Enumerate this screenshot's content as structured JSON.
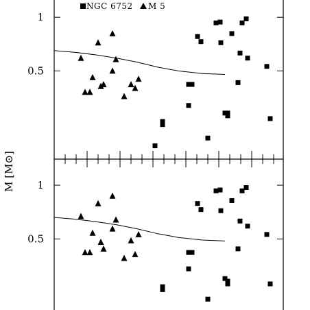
{
  "legend": {
    "ngc_label": "NGC 6752",
    "m5_label": "M 5"
  },
  "y_axis_label": "M [M⊙]",
  "colors": {
    "ink": "#000000",
    "background": "#ffffff"
  },
  "chart_data": [
    {
      "type": "scatter",
      "panel": "top",
      "yscale": "log",
      "ylim": [
        0.16,
        1.25
      ],
      "yticks": [
        1,
        0.5
      ],
      "ytick_labels": [
        "1",
        "0.5"
      ],
      "legend_placement": "top-left",
      "series": [
        {
          "name": "NGC 6752",
          "marker": "square",
          "points": [
            [
              1,
              0.19
            ],
            [
              2,
              0.26
            ],
            [
              3,
              0.25
            ],
            [
              4,
              0.42
            ],
            [
              5,
              0.42
            ],
            [
              6,
              0.32
            ],
            [
              7,
              0.21
            ],
            [
              8,
              0.78
            ],
            [
              9,
              0.73
            ],
            [
              10,
              0.93
            ],
            [
              11,
              0.94
            ],
            [
              12,
              0.72
            ],
            [
              13,
              0.29
            ],
            [
              14,
              0.29
            ],
            [
              15,
              0.28
            ],
            [
              16,
              0.81
            ],
            [
              17,
              0.43
            ],
            [
              18,
              0.63
            ],
            [
              19,
              0.93
            ],
            [
              20,
              0.98
            ],
            [
              21,
              0.59
            ],
            [
              22,
              0.53
            ],
            [
              23,
              0.27
            ]
          ]
        },
        {
          "name": "M 5",
          "marker": "triangle",
          "points": [
            [
              1,
              0.59
            ],
            [
              2,
              0.38
            ],
            [
              3,
              0.38
            ],
            [
              4,
              0.46
            ],
            [
              5,
              0.72
            ],
            [
              6,
              0.41
            ],
            [
              7,
              0.42
            ],
            [
              8,
              0.81
            ],
            [
              9,
              0.5
            ],
            [
              10,
              0.58
            ],
            [
              11,
              0.36
            ],
            [
              12,
              0.42
            ],
            [
              13,
              0.4
            ],
            [
              14,
              0.45
            ]
          ]
        },
        {
          "name": "",
          "marker": "line",
          "points": [
            [
              0,
              0.65
            ],
            [
              2,
              0.635
            ],
            [
              4,
              0.615
            ],
            [
              6,
              0.59
            ],
            [
              8,
              0.56
            ],
            [
              10,
              0.525
            ],
            [
              12,
              0.5
            ],
            [
              14,
              0.483
            ],
            [
              16,
              0.478
            ]
          ]
        }
      ]
    },
    {
      "type": "scatter",
      "panel": "bottom",
      "yscale": "log",
      "ylim": [
        0.2,
        1.4
      ],
      "yticks": [
        1,
        0.5
      ],
      "ytick_labels": [
        "1",
        "0.5"
      ],
      "series": [
        {
          "name": "NGC 6752",
          "marker": "square",
          "points": [
            [
              1,
              0.27
            ],
            [
              2,
              0.26
            ],
            [
              3,
              0.42
            ],
            [
              4,
              0.42
            ],
            [
              5,
              0.34
            ],
            [
              6,
              0.23
            ],
            [
              7,
              0.79
            ],
            [
              8,
              0.73
            ],
            [
              9,
              0.93
            ],
            [
              10,
              0.94
            ],
            [
              11,
              0.72
            ],
            [
              12,
              0.3
            ],
            [
              13,
              0.29
            ],
            [
              14,
              0.28
            ],
            [
              15,
              0.82
            ],
            [
              16,
              0.44
            ],
            [
              17,
              0.63
            ],
            [
              18,
              0.93
            ],
            [
              19,
              0.97
            ],
            [
              20,
              0.59
            ],
            [
              21,
              0.53
            ],
            [
              22,
              0.28
            ]
          ]
        },
        {
          "name": "M 5",
          "marker": "triangle",
          "points": [
            [
              1,
              0.67
            ],
            [
              2,
              0.42
            ],
            [
              3,
              0.42
            ],
            [
              4,
              0.54
            ],
            [
              5,
              0.79
            ],
            [
              6,
              0.48
            ],
            [
              7,
              0.44
            ],
            [
              8,
              0.87
            ],
            [
              9,
              0.57
            ],
            [
              10,
              0.64
            ],
            [
              11,
              0.39
            ],
            [
              12,
              0.49
            ],
            [
              13,
              0.41
            ],
            [
              14,
              0.53
            ]
          ]
        },
        {
          "name": "",
          "marker": "line",
          "points": [
            [
              0,
              0.66
            ],
            [
              2,
              0.645
            ],
            [
              4,
              0.625
            ],
            [
              6,
              0.6
            ],
            [
              8,
              0.57
            ],
            [
              10,
              0.535
            ],
            [
              12,
              0.51
            ],
            [
              14,
              0.493
            ],
            [
              16,
              0.487
            ]
          ]
        }
      ]
    }
  ]
}
